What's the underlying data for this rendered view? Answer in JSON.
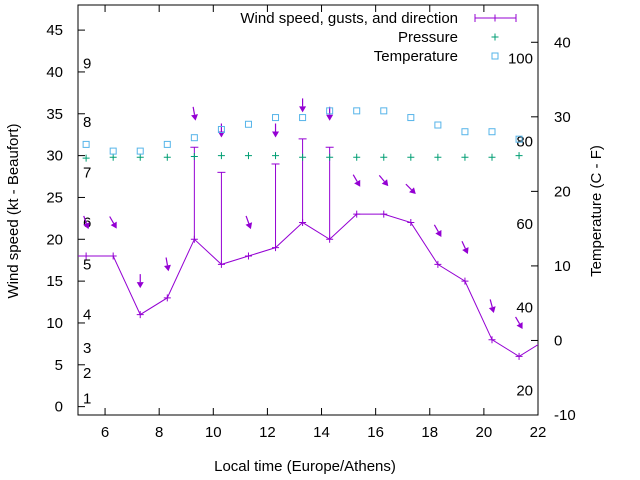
{
  "chart_data": {
    "type": "line",
    "xlabel": "Local time (Europe/Athens)",
    "ylabel": "Wind speed (kt - Beaufort)",
    "y2label": "Temperature (C - F)",
    "xlim": [
      5,
      22
    ],
    "ylim": [
      -1,
      48
    ],
    "y2lim": [
      -10,
      45
    ],
    "x_ticks": [
      6,
      8,
      10,
      12,
      14,
      16,
      18,
      20,
      22
    ],
    "y_ticks": [
      0,
      5,
      10,
      15,
      20,
      25,
      30,
      35,
      40,
      45
    ],
    "y2_ticks": [
      -10,
      0,
      10,
      20,
      30,
      40
    ],
    "beaufort_labels": [
      {
        "label": "1",
        "kt": 1
      },
      {
        "label": "2",
        "kt": 4
      },
      {
        "label": "3",
        "kt": 7
      },
      {
        "label": "4",
        "kt": 11
      },
      {
        "label": "5",
        "kt": 17
      },
      {
        "label": "6",
        "kt": 22
      },
      {
        "label": "7",
        "kt": 28
      },
      {
        "label": "8",
        "kt": 34
      },
      {
        "label": "9",
        "kt": 41
      }
    ],
    "fahrenheit_labels": [
      {
        "label": "20",
        "c": -6.7
      },
      {
        "label": "40",
        "c": 4.4
      },
      {
        "label": "60",
        "c": 15.6
      },
      {
        "label": "80",
        "c": 26.7
      },
      {
        "label": "100",
        "c": 37.8
      }
    ],
    "legend": [
      {
        "label": "Wind speed, gusts, and direction",
        "color": "#9400d3"
      },
      {
        "label": "Pressure",
        "color": "#009e73"
      },
      {
        "label": "Temperature",
        "color": "#56b4e9"
      }
    ],
    "series": [
      {
        "name": "Wind speed, gusts, and direction",
        "color": "#9400d3",
        "x": [
          4.3,
          5.3,
          6.3,
          7.3,
          8.3,
          9.3,
          10.3,
          11.3,
          12.3,
          13.3,
          14.3,
          15.3,
          16.3,
          17.3,
          18.3,
          19.3,
          20.3,
          21.3,
          22.3
        ],
        "speed": [
          18,
          18,
          18,
          11,
          13,
          20,
          17,
          18,
          19,
          22,
          20,
          23,
          23,
          22,
          17,
          15,
          8,
          6,
          8
        ],
        "gust": [
          null,
          null,
          null,
          null,
          null,
          31,
          28,
          null,
          29,
          32,
          31,
          null,
          null,
          null,
          null,
          null,
          null,
          null,
          null
        ]
      },
      {
        "name": "Direction arrows",
        "color": "#9400d3",
        "x": [
          5.3,
          6.3,
          7.3,
          8.3,
          9.3,
          10.3,
          11.3,
          12.3,
          13.3,
          14.3,
          15.3,
          16.3,
          17.3,
          18.3,
          19.3,
          20.3,
          21.3
        ],
        "y": [
          22,
          22,
          15,
          17,
          35,
          33,
          22,
          33,
          36,
          35,
          27,
          27,
          26,
          21,
          19,
          12,
          10
        ],
        "direction_deg": [
          20,
          30,
          0,
          10,
          10,
          0,
          20,
          0,
          0,
          0,
          30,
          40,
          45,
          30,
          25,
          15,
          30
        ]
      },
      {
        "name": "Pressure",
        "color": "#009e73",
        "x": [
          5.3,
          6.3,
          7.3,
          8.3,
          9.3,
          10.3,
          11.3,
          12.3,
          13.3,
          14.3,
          15.3,
          16.3,
          17.3,
          18.3,
          19.3,
          20.3,
          21.3
        ],
        "y": [
          29.7,
          29.8,
          29.8,
          29.8,
          29.9,
          30.0,
          30.0,
          30.0,
          29.8,
          29.8,
          29.8,
          29.8,
          29.8,
          29.8,
          29.8,
          29.8,
          30.0
        ]
      },
      {
        "name": "Temperature",
        "color": "#56b4e9",
        "x": [
          5.3,
          6.3,
          7.3,
          8.3,
          9.3,
          10.3,
          11.3,
          12.3,
          13.3,
          14.3,
          15.3,
          16.3,
          17.3,
          18.3,
          19.3,
          20.3,
          21.3
        ],
        "y": [
          26.3,
          25.4,
          25.4,
          26.3,
          27.2,
          28.3,
          29.0,
          29.9,
          29.9,
          30.8,
          30.8,
          30.8,
          29.9,
          28.9,
          28.0,
          28.0,
          27.0
        ]
      }
    ]
  }
}
